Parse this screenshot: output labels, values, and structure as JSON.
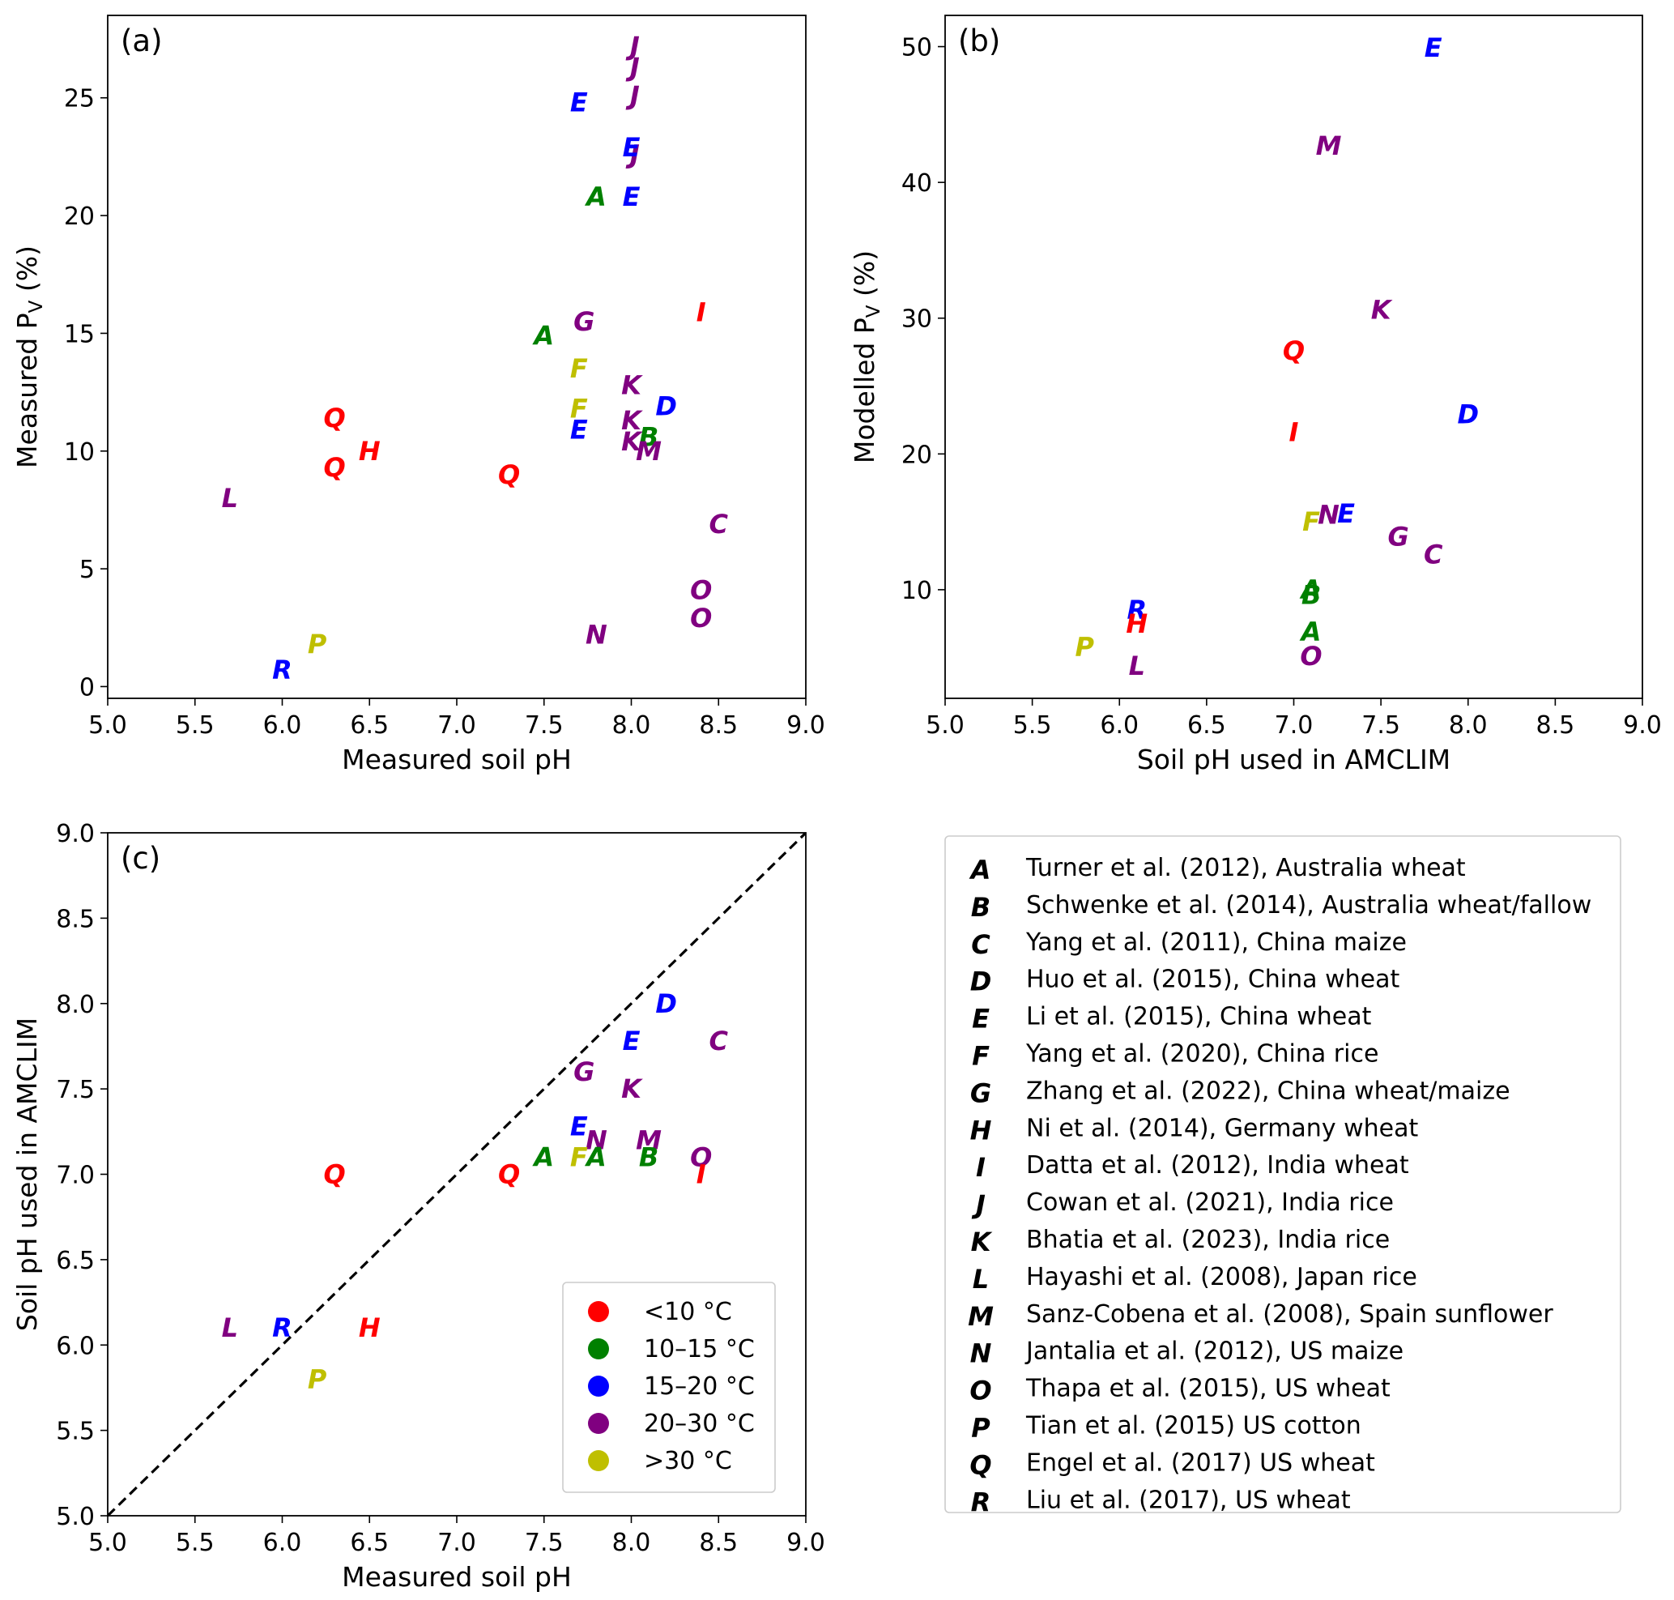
{
  "colors": {
    "lt10": "#ff0000",
    "10to15": "#008000",
    "15to20": "#0000ff",
    "20to30": "#800080",
    "gt30": "#bfbf00"
  },
  "chart_data": [
    {
      "type": "scatter",
      "panel": "(a)",
      "xlabel": "Measured soil pH",
      "ylabel": "Measured P",
      "ylabel_sub": "V",
      "ylabel_suffix": " (%)",
      "xlim": [
        5.0,
        9.0
      ],
      "ylim": [
        -0.5,
        28.5
      ],
      "xticks": [
        "5.0",
        "5.5",
        "6.0",
        "6.5",
        "7.0",
        "7.5",
        "8.0",
        "8.5",
        "9.0"
      ],
      "xtick_values": [
        5.0,
        5.5,
        6.0,
        6.5,
        7.0,
        7.5,
        8.0,
        8.5,
        9.0
      ],
      "yticks": [
        "0",
        "5",
        "10",
        "15",
        "20",
        "25"
      ],
      "ytick_values": [
        0,
        5,
        10,
        15,
        20,
        25
      ],
      "points": [
        {
          "label": "J",
          "x": 8.02,
          "y": 27.2,
          "temp": "20to30"
        },
        {
          "label": "J",
          "x": 8.02,
          "y": 26.3,
          "temp": "20to30"
        },
        {
          "label": "J",
          "x": 8.02,
          "y": 25.1,
          "temp": "20to30"
        },
        {
          "label": "J",
          "x": 8.02,
          "y": 22.6,
          "temp": "20to30"
        },
        {
          "label": "E",
          "x": 7.7,
          "y": 24.8,
          "temp": "15to20"
        },
        {
          "label": "E",
          "x": 8.0,
          "y": 22.9,
          "temp": "15to20"
        },
        {
          "label": "E",
          "x": 8.0,
          "y": 20.8,
          "temp": "15to20"
        },
        {
          "label": "A",
          "x": 7.8,
          "y": 20.8,
          "temp": "10to15"
        },
        {
          "label": "A",
          "x": 7.5,
          "y": 14.9,
          "temp": "10to15"
        },
        {
          "label": "G",
          "x": 7.73,
          "y": 15.5,
          "temp": "20to30"
        },
        {
          "label": "I",
          "x": 8.4,
          "y": 15.9,
          "temp": "lt10"
        },
        {
          "label": "F",
          "x": 7.7,
          "y": 13.5,
          "temp": "gt30"
        },
        {
          "label": "F",
          "x": 7.7,
          "y": 11.8,
          "temp": "gt30"
        },
        {
          "label": "K",
          "x": 8.0,
          "y": 12.8,
          "temp": "20to30"
        },
        {
          "label": "K",
          "x": 8.0,
          "y": 11.3,
          "temp": "20to30"
        },
        {
          "label": "K",
          "x": 8.0,
          "y": 10.4,
          "temp": "20to30"
        },
        {
          "label": "D",
          "x": 8.2,
          "y": 11.9,
          "temp": "15to20"
        },
        {
          "label": "E",
          "x": 7.7,
          "y": 10.9,
          "temp": "15to20"
        },
        {
          "label": "B",
          "x": 8.1,
          "y": 10.6,
          "temp": "10to15"
        },
        {
          "label": "M",
          "x": 8.1,
          "y": 10.0,
          "temp": "20to30"
        },
        {
          "label": "Q",
          "x": 6.3,
          "y": 11.4,
          "temp": "lt10"
        },
        {
          "label": "Q",
          "x": 6.3,
          "y": 9.3,
          "temp": "lt10"
        },
        {
          "label": "Q",
          "x": 7.3,
          "y": 9.0,
          "temp": "lt10"
        },
        {
          "label": "H",
          "x": 6.5,
          "y": 10.0,
          "temp": "lt10"
        },
        {
          "label": "L",
          "x": 5.7,
          "y": 8.0,
          "temp": "20to30"
        },
        {
          "label": "C",
          "x": 8.5,
          "y": 6.9,
          "temp": "20to30"
        },
        {
          "label": "O",
          "x": 8.4,
          "y": 4.1,
          "temp": "20to30"
        },
        {
          "label": "O",
          "x": 8.4,
          "y": 2.9,
          "temp": "20to30"
        },
        {
          "label": "N",
          "x": 7.8,
          "y": 2.2,
          "temp": "20to30"
        },
        {
          "label": "P",
          "x": 6.2,
          "y": 1.8,
          "temp": "gt30"
        },
        {
          "label": "R",
          "x": 6.0,
          "y": 0.7,
          "temp": "15to20"
        }
      ]
    },
    {
      "type": "scatter",
      "panel": "(b)",
      "xlabel": "Soil pH used in AMCLIM",
      "ylabel": "Modelled P",
      "ylabel_sub": "V",
      "ylabel_suffix": " (%)",
      "xlim": [
        5.0,
        9.0
      ],
      "ylim": [
        2.0,
        52.3
      ],
      "xticks": [
        "5.0",
        "5.5",
        "6.0",
        "6.5",
        "7.0",
        "7.5",
        "8.0",
        "8.5",
        "9.0"
      ],
      "xtick_values": [
        5.0,
        5.5,
        6.0,
        6.5,
        7.0,
        7.5,
        8.0,
        8.5,
        9.0
      ],
      "yticks": [
        "10",
        "20",
        "30",
        "40",
        "50"
      ],
      "ytick_values": [
        10,
        20,
        30,
        40,
        50
      ],
      "points": [
        {
          "label": "E",
          "x": 7.8,
          "y": 49.9,
          "temp": "15to20"
        },
        {
          "label": "M",
          "x": 7.2,
          "y": 42.7,
          "temp": "20to30"
        },
        {
          "label": "K",
          "x": 7.5,
          "y": 30.6,
          "temp": "20to30"
        },
        {
          "label": "Q",
          "x": 7.0,
          "y": 27.6,
          "temp": "lt10"
        },
        {
          "label": "D",
          "x": 8.0,
          "y": 22.9,
          "temp": "15to20"
        },
        {
          "label": "I",
          "x": 7.0,
          "y": 21.6,
          "temp": "lt10"
        },
        {
          "label": "E",
          "x": 7.3,
          "y": 15.6,
          "temp": "15to20"
        },
        {
          "label": "N",
          "x": 7.2,
          "y": 15.5,
          "temp": "20to30"
        },
        {
          "label": "F",
          "x": 7.1,
          "y": 15.0,
          "temp": "gt30"
        },
        {
          "label": "G",
          "x": 7.6,
          "y": 13.9,
          "temp": "20to30"
        },
        {
          "label": "C",
          "x": 7.8,
          "y": 12.6,
          "temp": "20to30"
        },
        {
          "label": "A",
          "x": 7.1,
          "y": 10.0,
          "temp": "10to15"
        },
        {
          "label": "B",
          "x": 7.1,
          "y": 9.6,
          "temp": "10to15"
        },
        {
          "label": "R",
          "x": 6.1,
          "y": 8.5,
          "temp": "15to20"
        },
        {
          "label": "H",
          "x": 6.1,
          "y": 7.5,
          "temp": "lt10"
        },
        {
          "label": "A",
          "x": 7.1,
          "y": 6.9,
          "temp": "10to15"
        },
        {
          "label": "P",
          "x": 5.8,
          "y": 5.8,
          "temp": "gt30"
        },
        {
          "label": "O",
          "x": 7.1,
          "y": 5.1,
          "temp": "20to30"
        },
        {
          "label": "L",
          "x": 6.1,
          "y": 4.4,
          "temp": "20to30"
        }
      ]
    },
    {
      "type": "scatter",
      "panel": "(c)",
      "xlabel": "Measured soil pH",
      "ylabel": "Soil pH used in AMCLIM",
      "xlim": [
        5.0,
        9.0
      ],
      "ylim": [
        5.0,
        9.0
      ],
      "xticks": [
        "5.0",
        "5.5",
        "6.0",
        "6.5",
        "7.0",
        "7.5",
        "8.0",
        "8.5",
        "9.0"
      ],
      "xtick_values": [
        5.0,
        5.5,
        6.0,
        6.5,
        7.0,
        7.5,
        8.0,
        8.5,
        9.0
      ],
      "yticks": [
        "5.0",
        "5.5",
        "6.0",
        "6.5",
        "7.0",
        "7.5",
        "8.0",
        "8.5",
        "9.0"
      ],
      "ytick_values": [
        5.0,
        5.5,
        6.0,
        6.5,
        7.0,
        7.5,
        8.0,
        8.5,
        9.0
      ],
      "one_to_one_line": true,
      "points": [
        {
          "label": "D",
          "x": 8.2,
          "y": 8.0,
          "temp": "15to20"
        },
        {
          "label": "E",
          "x": 8.0,
          "y": 7.78,
          "temp": "15to20"
        },
        {
          "label": "C",
          "x": 8.5,
          "y": 7.78,
          "temp": "20to30"
        },
        {
          "label": "G",
          "x": 7.73,
          "y": 7.6,
          "temp": "20to30"
        },
        {
          "label": "K",
          "x": 8.0,
          "y": 7.5,
          "temp": "20to30"
        },
        {
          "label": "E",
          "x": 7.7,
          "y": 7.28,
          "temp": "15to20"
        },
        {
          "label": "N",
          "x": 7.8,
          "y": 7.2,
          "temp": "20to30"
        },
        {
          "label": "M",
          "x": 8.1,
          "y": 7.2,
          "temp": "20to30"
        },
        {
          "label": "A",
          "x": 7.5,
          "y": 7.1,
          "temp": "10to15"
        },
        {
          "label": "F",
          "x": 7.7,
          "y": 7.1,
          "temp": "gt30"
        },
        {
          "label": "A",
          "x": 7.8,
          "y": 7.1,
          "temp": "10to15"
        },
        {
          "label": "B",
          "x": 8.1,
          "y": 7.1,
          "temp": "10to15"
        },
        {
          "label": "O",
          "x": 8.4,
          "y": 7.1,
          "temp": "20to30"
        },
        {
          "label": "Q",
          "x": 6.3,
          "y": 7.0,
          "temp": "lt10"
        },
        {
          "label": "Q",
          "x": 7.3,
          "y": 7.0,
          "temp": "lt10"
        },
        {
          "label": "I",
          "x": 8.4,
          "y": 7.0,
          "temp": "lt10"
        },
        {
          "label": "L",
          "x": 5.7,
          "y": 6.1,
          "temp": "20to30"
        },
        {
          "label": "R",
          "x": 6.0,
          "y": 6.1,
          "temp": "15to20"
        },
        {
          "label": "H",
          "x": 6.5,
          "y": 6.1,
          "temp": "lt10"
        },
        {
          "label": "P",
          "x": 6.2,
          "y": 5.8,
          "temp": "gt30"
        }
      ],
      "temperature_legend": [
        {
          "key": "lt10",
          "label": "<10 °C"
        },
        {
          "key": "10to15",
          "label": "10–15 °C"
        },
        {
          "key": "15to20",
          "label": "15–20 °C"
        },
        {
          "key": "20to30",
          "label": "20–30 °C"
        },
        {
          "key": "gt30",
          "label": ">30 °C"
        }
      ]
    }
  ],
  "study_legend": [
    {
      "letter": "A",
      "text": "Turner et al. (2012), Australia wheat"
    },
    {
      "letter": "B",
      "text": "Schwenke et al. (2014), Australia wheat/fallow"
    },
    {
      "letter": "C",
      "text": "Yang et al. (2011), China maize"
    },
    {
      "letter": "D",
      "text": "Huo et al. (2015), China wheat"
    },
    {
      "letter": "E",
      "text": "Li et al. (2015), China wheat"
    },
    {
      "letter": "F",
      "text": "Yang et al. (2020), China rice"
    },
    {
      "letter": "G",
      "text": "Zhang et al. (2022), China wheat/maize"
    },
    {
      "letter": "H",
      "text": "Ni et al. (2014), Germany wheat"
    },
    {
      "letter": "I",
      "text": "Datta et al. (2012), India wheat"
    },
    {
      "letter": "J",
      "text": "Cowan et al. (2021), India rice"
    },
    {
      "letter": "K",
      "text": "Bhatia et al. (2023), India rice"
    },
    {
      "letter": "L",
      "text": "Hayashi et al. (2008), Japan rice"
    },
    {
      "letter": "M",
      "text": "Sanz-Cobena et al. (2008), Spain sunflower"
    },
    {
      "letter": "N",
      "text": "Jantalia et al. (2012), US maize"
    },
    {
      "letter": "O",
      "text": "Thapa et al. (2015), US wheat"
    },
    {
      "letter": "P",
      "text": "Tian et al. (2015) US cotton"
    },
    {
      "letter": "Q",
      "text": "Engel et al. (2017) US wheat"
    },
    {
      "letter": "R",
      "text": "Liu et al. (2017), US wheat"
    }
  ]
}
